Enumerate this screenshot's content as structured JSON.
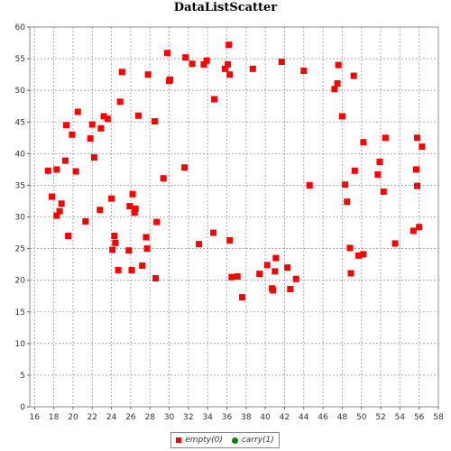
{
  "chart_data": {
    "type": "scatter",
    "title": "DataListScatter",
    "xlabel": "",
    "ylabel": "",
    "xlim": [
      15.5,
      58
    ],
    "ylim": [
      0,
      60
    ],
    "x_ticks": [
      16,
      18,
      20,
      22,
      24,
      26,
      28,
      30,
      32,
      34,
      36,
      38,
      40,
      42,
      44,
      46,
      48,
      50,
      52,
      54,
      56,
      58
    ],
    "y_ticks": [
      0,
      5,
      10,
      15,
      20,
      25,
      30,
      35,
      40,
      45,
      50,
      55,
      60
    ],
    "grid": true,
    "legend_position": "bottom",
    "series": [
      {
        "name": "empty(0)",
        "color": "#ff0000",
        "marker": "square",
        "points": [
          [
            17.4,
            37.3
          ],
          [
            17.8,
            33.2
          ],
          [
            18.3,
            37.5
          ],
          [
            18.3,
            30.2
          ],
          [
            18.6,
            30.9
          ],
          [
            18.8,
            32.1
          ],
          [
            19.2,
            38.9
          ],
          [
            19.3,
            44.5
          ],
          [
            19.5,
            27.0
          ],
          [
            19.9,
            43.0
          ],
          [
            20.3,
            37.2
          ],
          [
            20.5,
            46.6
          ],
          [
            21.3,
            29.3
          ],
          [
            21.8,
            42.4
          ],
          [
            22.0,
            44.6
          ],
          [
            22.2,
            39.4
          ],
          [
            22.8,
            31.1
          ],
          [
            22.9,
            44.0
          ],
          [
            23.2,
            45.9
          ],
          [
            23.6,
            45.5
          ],
          [
            24.0,
            32.9
          ],
          [
            24.1,
            24.8
          ],
          [
            24.3,
            27.0
          ],
          [
            24.4,
            25.9
          ],
          [
            24.7,
            21.6
          ],
          [
            24.9,
            48.2
          ],
          [
            25.1,
            52.9
          ],
          [
            25.8,
            24.7
          ],
          [
            25.9,
            31.7
          ],
          [
            26.1,
            21.6
          ],
          [
            26.2,
            33.6
          ],
          [
            26.4,
            30.7
          ],
          [
            26.5,
            31.3
          ],
          [
            26.8,
            46.0
          ],
          [
            27.2,
            22.3
          ],
          [
            27.6,
            26.8
          ],
          [
            27.7,
            25.0
          ],
          [
            27.8,
            52.5
          ],
          [
            28.5,
            45.1
          ],
          [
            28.6,
            20.3
          ],
          [
            28.7,
            29.2
          ],
          [
            29.4,
            36.1
          ],
          [
            29.8,
            55.9
          ],
          [
            30.0,
            51.5
          ],
          [
            30.1,
            51.7
          ],
          [
            31.6,
            37.8
          ],
          [
            31.7,
            55.2
          ],
          [
            32.4,
            54.2
          ],
          [
            33.1,
            25.7
          ],
          [
            33.6,
            54.1
          ],
          [
            33.9,
            54.7
          ],
          [
            34.6,
            27.5
          ],
          [
            34.7,
            48.6
          ],
          [
            35.8,
            53.4
          ],
          [
            36.1,
            54.1
          ],
          [
            36.2,
            57.2
          ],
          [
            36.3,
            52.5
          ],
          [
            36.3,
            26.3
          ],
          [
            36.5,
            20.5
          ],
          [
            37.1,
            20.6
          ],
          [
            37.6,
            17.3
          ],
          [
            38.7,
            53.4
          ],
          [
            39.4,
            21.0
          ],
          [
            40.2,
            22.4
          ],
          [
            40.7,
            18.7
          ],
          [
            40.8,
            18.4
          ],
          [
            41.0,
            21.4
          ],
          [
            41.1,
            23.5
          ],
          [
            41.7,
            54.5
          ],
          [
            42.3,
            22.0
          ],
          [
            42.6,
            18.6
          ],
          [
            43.2,
            20.2
          ],
          [
            44.0,
            53.1
          ],
          [
            44.6,
            35.0
          ],
          [
            47.2,
            50.2
          ],
          [
            47.5,
            51.1
          ],
          [
            47.6,
            54.0
          ],
          [
            48.0,
            45.9
          ],
          [
            48.3,
            35.1
          ],
          [
            48.5,
            32.4
          ],
          [
            48.8,
            25.1
          ],
          [
            48.9,
            21.1
          ],
          [
            49.2,
            52.3
          ],
          [
            49.3,
            37.3
          ],
          [
            49.7,
            23.9
          ],
          [
            50.2,
            24.1
          ],
          [
            50.2,
            41.8
          ],
          [
            51.7,
            36.7
          ],
          [
            51.9,
            38.7
          ],
          [
            52.3,
            34.0
          ],
          [
            52.5,
            42.5
          ],
          [
            53.5,
            25.8
          ],
          [
            55.4,
            27.8
          ],
          [
            55.7,
            37.5
          ],
          [
            55.8,
            34.9
          ],
          [
            55.8,
            42.5
          ],
          [
            56.0,
            28.4
          ],
          [
            56.3,
            41.1
          ]
        ]
      },
      {
        "name": "carry(1)",
        "color": "#008000",
        "marker": "circle",
        "points": []
      }
    ]
  }
}
